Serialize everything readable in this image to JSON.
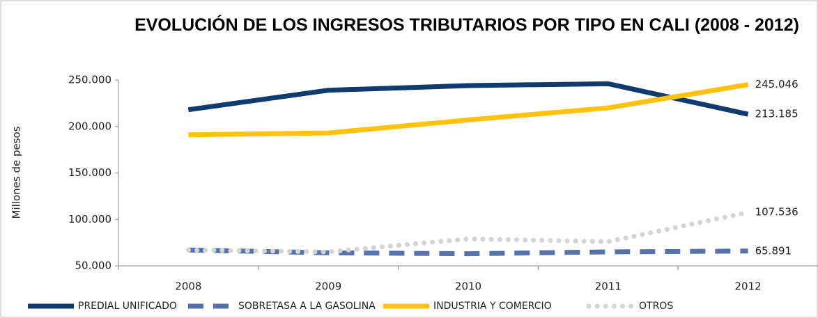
{
  "chart_data": {
    "type": "line",
    "title": "EVOLUCIÓN DE LOS INGRESOS TRIBUTARIOS POR TIPO EN CALI (2008 - 2012)",
    "y_label": "Millones de pesos",
    "categories": [
      "2008",
      "2009",
      "2010",
      "2011",
      "2012"
    ],
    "series": [
      {
        "name": "PREDIAL UNIFICADO",
        "color": "#0f3b6e",
        "dash": "solid",
        "values": [
          218000,
          239000,
          244000,
          246000,
          213185
        ],
        "value_labels": [
          null,
          null,
          null,
          null,
          "213.185"
        ]
      },
      {
        "name": "SOBRETASA A LA GASOLINA",
        "color": "#5672a8",
        "dash": "dashed",
        "values": [
          67000,
          64000,
          63000,
          65000,
          65891
        ],
        "value_labels": [
          null,
          null,
          null,
          null,
          "65.891"
        ]
      },
      {
        "name": "INDUSTRIA Y COMERCIO",
        "color": "#ffc20e",
        "dash": "solid",
        "values": [
          191000,
          193000,
          207000,
          220000,
          245046
        ],
        "value_labels": [
          null,
          null,
          null,
          null,
          "245.046"
        ]
      },
      {
        "name": "OTROS",
        "color": "#d4d4d4",
        "dash": "dotted",
        "values": [
          67000,
          65000,
          79000,
          76000,
          107536
        ],
        "value_labels": [
          null,
          null,
          null,
          null,
          "107.536"
        ]
      }
    ],
    "ylim": [
      50000,
      250000
    ],
    "yticks": [
      {
        "value": 50000,
        "label": "50.000"
      },
      {
        "value": 100000,
        "label": "100.000"
      },
      {
        "value": 150000,
        "label": "150.000"
      },
      {
        "value": 200000,
        "label": "200.000"
      },
      {
        "value": 250000,
        "label": "250.000"
      }
    ],
    "legend": "bottom"
  }
}
